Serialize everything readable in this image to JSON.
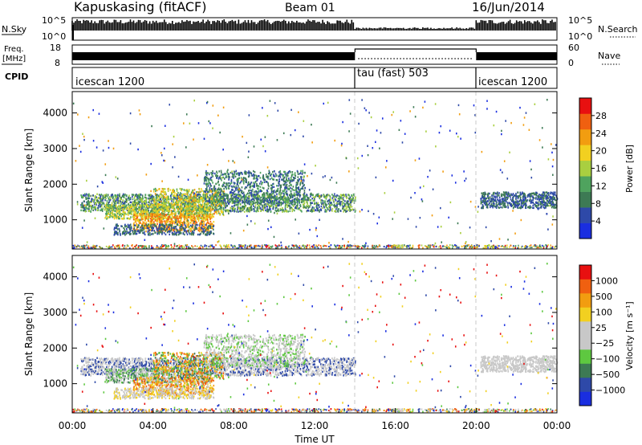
{
  "header": {
    "station": "Kapuskasing (fitACF)",
    "beam": "Beam 01",
    "date": "16/Jun/2014"
  },
  "nsky_panel": {
    "label": "N.Sky",
    "ticks": [
      "10^5",
      "10^0"
    ],
    "right_label": "N.Search",
    "right_ticks": [
      "10^5",
      "10^0"
    ]
  },
  "freq_panel": {
    "label_top": "Freq.",
    "label_unit": "[MHz]",
    "ticks": [
      "18",
      "8"
    ],
    "right_label": "Nave",
    "right_ticks": [
      "60",
      "0"
    ]
  },
  "cpid_panel": {
    "label": "CPID",
    "segments": [
      {
        "label": "icescan 1200",
        "start": 0,
        "end": 14
      },
      {
        "label": "tau (fast) 503",
        "start": 14,
        "end": 20
      },
      {
        "label": "icescan 1200",
        "start": 20,
        "end": 24
      }
    ]
  },
  "colors": {
    "power": [
      "#1a2ee0",
      "#2e49a8",
      "#3d7a54",
      "#4fa35e",
      "#a9cf40",
      "#f2d020",
      "#f29d10",
      "#f06010",
      "#e81010"
    ],
    "velocity": [
      "#e81010",
      "#f06010",
      "#f29d10",
      "#f2d020",
      "#c8c8c8",
      "#c8c8c8",
      "#5ec840",
      "#3d7a54",
      "#2e49a8",
      "#1a2ee0"
    ]
  },
  "chart_data": [
    {
      "type": "heatmap",
      "name": "power",
      "ylabel": "Slant Range [km]",
      "yticks": [
        "1000",
        "2000",
        "3000",
        "4000"
      ],
      "ylim": [
        180,
        4600
      ],
      "xlim": [
        0,
        24
      ],
      "colorbar": {
        "label": "Power [dB]",
        "ticks": [
          "4",
          "8",
          "12",
          "16",
          "20",
          "24",
          "28"
        ],
        "range": [
          0,
          32
        ]
      }
    },
    {
      "type": "heatmap",
      "name": "velocity",
      "ylabel": "Slant Range [km]",
      "yticks": [
        "1000",
        "2000",
        "3000",
        "4000"
      ],
      "ylim": [
        180,
        4600
      ],
      "xlim": [
        0,
        24
      ],
      "xticks": [
        "00:00",
        "04:00",
        "08:00",
        "12:00",
        "16:00",
        "20:00",
        "00:00"
      ],
      "xlabel": "Time UT",
      "colorbar": {
        "label": "Velocity [m s⁻¹]",
        "ticks": [
          "1000",
          "500",
          "100",
          "25",
          "−25",
          "−100",
          "−500",
          "−1000"
        ]
      }
    }
  ]
}
